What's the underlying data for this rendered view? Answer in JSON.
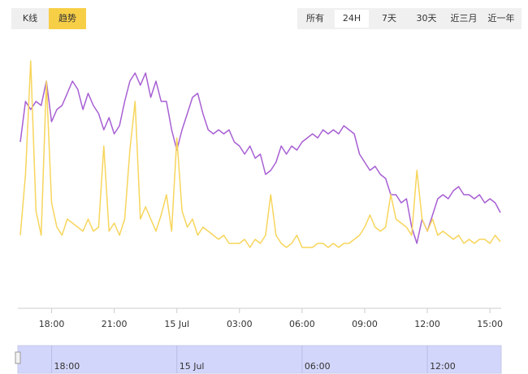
{
  "toolbar": {
    "modes": [
      "K线",
      "趋势"
    ],
    "active_mode": 1,
    "ranges": [
      "所有",
      "24H",
      "7天",
      "30天",
      "近三月",
      "近一年"
    ],
    "active_range": 1
  },
  "chart_data": {
    "type": "line",
    "x": [
      -7.5,
      -7.25,
      -7,
      -6.75,
      -6.5,
      -6.25,
      -6,
      -5.75,
      -5.5,
      -5.25,
      -5,
      -4.75,
      -4.5,
      -4.25,
      -4,
      -3.75,
      -3.5,
      -3.25,
      -3,
      -2.75,
      -2.5,
      -2.25,
      -2,
      -1.75,
      -1.5,
      -1.25,
      -1,
      -0.75,
      -0.5,
      -0.25,
      0,
      0.25,
      0.5,
      0.75,
      1,
      1.25,
      1.5,
      1.75,
      2,
      2.25,
      2.5,
      2.75,
      3,
      3.25,
      3.5,
      3.75,
      4,
      4.25,
      4.5,
      4.75,
      5,
      5.25,
      5.5,
      5.75,
      6,
      6.25,
      6.5,
      6.75,
      7,
      7.25,
      7.5,
      7.75,
      8,
      8.25,
      8.5,
      8.75,
      9,
      9.25,
      9.5,
      9.75,
      10,
      10.25,
      10.5,
      10.75,
      11,
      11.25,
      11.5,
      11.75,
      12,
      12.25,
      12.5,
      12.75,
      13,
      13.25,
      13.5,
      13.75,
      14,
      14.25,
      14.5,
      14.75,
      15,
      15.25,
      15.5
    ],
    "series": [
      {
        "color": "#a75fd3",
        "values": [
          205,
          255,
          245,
          255,
          250,
          280,
          230,
          245,
          250,
          265,
          280,
          270,
          245,
          265,
          250,
          240,
          220,
          235,
          215,
          225,
          255,
          280,
          290,
          275,
          290,
          260,
          280,
          255,
          255,
          220,
          195,
          220,
          240,
          260,
          265,
          240,
          220,
          215,
          220,
          215,
          220,
          205,
          200,
          190,
          200,
          185,
          190,
          165,
          170,
          180,
          200,
          190,
          200,
          195,
          205,
          210,
          215,
          210,
          220,
          215,
          220,
          215,
          225,
          220,
          215,
          190,
          180,
          170,
          175,
          165,
          160,
          140,
          140,
          130,
          135,
          100,
          80,
          110,
          95,
          115,
          135,
          140,
          135,
          145,
          150,
          140,
          140,
          135,
          140,
          130,
          135,
          130,
          118
        ]
      },
      {
        "color": "#f7d55c",
        "values": [
          90,
          165,
          305,
          120,
          90,
          280,
          130,
          100,
          90,
          110,
          105,
          100,
          95,
          110,
          95,
          100,
          200,
          95,
          105,
          90,
          110,
          195,
          255,
          110,
          125,
          110,
          95,
          115,
          140,
          95,
          210,
          120,
          100,
          110,
          90,
          100,
          95,
          90,
          85,
          90,
          80,
          80,
          80,
          85,
          75,
          85,
          80,
          90,
          140,
          90,
          80,
          75,
          80,
          90,
          75,
          75,
          75,
          80,
          80,
          75,
          80,
          75,
          80,
          80,
          85,
          90,
          100,
          115,
          100,
          95,
          100,
          140,
          110,
          105,
          100,
          90,
          170,
          110,
          95,
          110,
          90,
          95,
          90,
          85,
          90,
          80,
          85,
          80,
          85,
          85,
          80,
          90,
          82
        ]
      }
    ],
    "xlim": [
      -7.5,
      15.5
    ],
    "xticks": [
      {
        "value": -6,
        "label": "18:00"
      },
      {
        "value": -3,
        "label": "21:00"
      },
      {
        "value": 0,
        "label": "15 Jul"
      },
      {
        "value": 3,
        "label": "03:00"
      },
      {
        "value": 6,
        "label": "06:00"
      },
      {
        "value": 9,
        "label": "09:00"
      },
      {
        "value": 12,
        "label": "12:00"
      },
      {
        "value": 15,
        "label": "15:00"
      }
    ],
    "ylim": [
      0,
      340
    ]
  }
}
